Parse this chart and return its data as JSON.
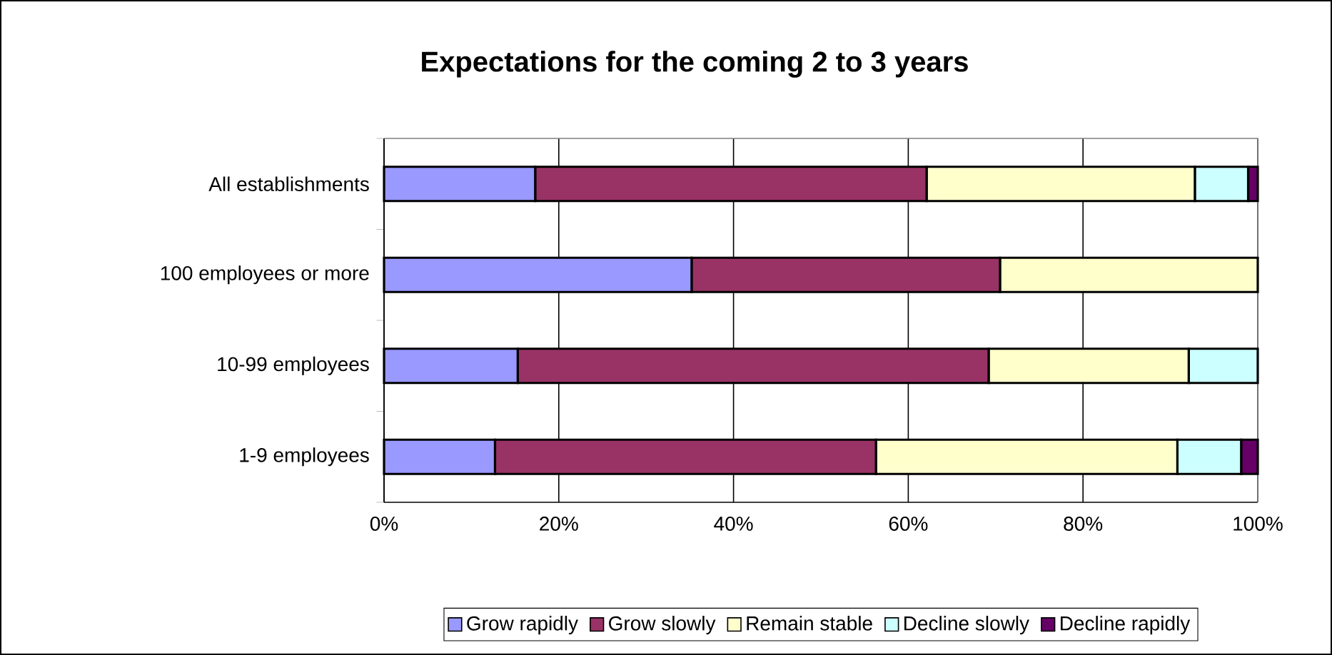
{
  "chart_data": {
    "type": "bar",
    "orientation": "horizontal",
    "stacked": true,
    "title": "Expectations for the coming 2 to 3 years",
    "categories": [
      "All establishments",
      "100 employees or more",
      "10-99 employees",
      "1-9 employees"
    ],
    "series": [
      {
        "name": "Grow rapidly",
        "color": "#9999ff",
        "values": [
          17.3,
          35.2,
          15.3,
          12.7
        ]
      },
      {
        "name": "Grow slowly",
        "color": "#993366",
        "values": [
          44.8,
          35.3,
          53.9,
          43.6
        ]
      },
      {
        "name": "Remain stable",
        "color": "#ffffcc",
        "values": [
          30.7,
          29.5,
          22.9,
          34.5
        ]
      },
      {
        "name": "Decline slowly",
        "color": "#ccffff",
        "values": [
          6.1,
          0,
          7.9,
          7.3
        ]
      },
      {
        "name": "Decline rapidly",
        "color": "#660066",
        "values": [
          1.1,
          0,
          0,
          1.9
        ]
      }
    ],
    "xlim": [
      0,
      100
    ],
    "xticks": [
      {
        "value": 0,
        "label": "0%"
      },
      {
        "value": 20,
        "label": "20%"
      },
      {
        "value": 40,
        "label": "40%"
      },
      {
        "value": 60,
        "label": "60%"
      },
      {
        "value": 80,
        "label": "80%"
      },
      {
        "value": 100,
        "label": "100%"
      }
    ],
    "grid": "x",
    "legend": "bottom"
  }
}
